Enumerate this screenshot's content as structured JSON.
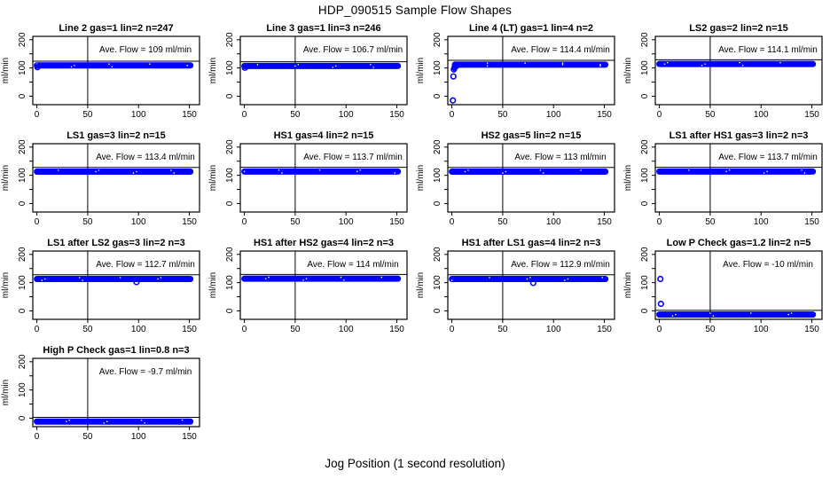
{
  "figure": {
    "title": "HDP_090515  Sample Flow Shapes",
    "xlabel": "Jog Position (1 second resolution)"
  },
  "chart_data": {
    "type": "scatter",
    "layout": {
      "rows": 4,
      "cols": 4,
      "panel_count": 13
    },
    "axes": {
      "xlim": [
        -4,
        160
      ],
      "ylim": [
        -30,
        212
      ],
      "x_ticks": [
        0,
        50,
        100,
        150
      ],
      "y_ticks_major": [
        0,
        100,
        200
      ],
      "y_ticks_minor": [
        50,
        150
      ],
      "y_axis_label": "ml/min",
      "vline_x": 50,
      "grid": false
    },
    "colors": {
      "points": "#0000ff",
      "axis": "#000000",
      "background": "#ffffff"
    },
    "panels": [
      {
        "title": "Line 2 gas=1 lin=2 n=247",
        "gas": "1",
        "lin": "2",
        "n": 247,
        "ave_flow": 109,
        "annotation": "Ave. Flow =  109  ml/min",
        "band": {
          "y": 109,
          "x_start": 0,
          "x_end": 151
        },
        "ref_line_y": 124,
        "outliers": [
          [
            0.5,
            103
          ]
        ]
      },
      {
        "title": "Line 3 gas=1 lin=3 n=246",
        "gas": "1",
        "lin": "3",
        "n": 246,
        "ave_flow": 106.7,
        "annotation": "Ave. Flow =  106.7  ml/min",
        "band": {
          "y": 107,
          "x_start": 0,
          "x_end": 151
        },
        "ref_line_y": 122,
        "outliers": [
          [
            0.5,
            101
          ]
        ]
      },
      {
        "title": "Line 4 (LT) gas=1 lin=4 n=2",
        "gas": "1",
        "lin": "4",
        "n": 2,
        "ave_flow": 114.4,
        "annotation": "Ave. Flow =  114.4  ml/min",
        "band": {
          "y": 112,
          "x_start": 3,
          "x_end": 151
        },
        "ref_line_y": 127,
        "outliers": [
          [
            1,
            -15
          ],
          [
            1.5,
            70
          ],
          [
            2,
            95
          ],
          [
            2.5,
            100
          ],
          [
            3,
            104
          ],
          [
            4,
            107
          ],
          [
            5,
            109
          ]
        ]
      },
      {
        "title": "LS2 gas=2 lin=2 n=15",
        "gas": "2",
        "lin": "2",
        "n": 15,
        "ave_flow": 114.1,
        "annotation": "Ave. Flow =  114.1  ml/min",
        "band": {
          "y": 114,
          "x_start": 0,
          "x_end": 151
        },
        "ref_line_y": 129,
        "outliers": []
      },
      {
        "title": "LS1 gas=3 lin=2 n=15",
        "gas": "3",
        "lin": "2",
        "n": 15,
        "ave_flow": 113.4,
        "annotation": "Ave. Flow =  113.4  ml/min",
        "band": {
          "y": 113,
          "x_start": 0,
          "x_end": 151
        },
        "ref_line_y": 128,
        "outliers": []
      },
      {
        "title": "HS1 gas=4 lin=2 n=15",
        "gas": "4",
        "lin": "2",
        "n": 15,
        "ave_flow": 113.7,
        "annotation": "Ave. Flow =  113.7  ml/min",
        "band": {
          "y": 113.5,
          "x_start": 0,
          "x_end": 151
        },
        "ref_line_y": 128.5,
        "outliers": []
      },
      {
        "title": "HS2 gas=5 lin=2 n=15",
        "gas": "5",
        "lin": "2",
        "n": 15,
        "ave_flow": 113,
        "annotation": "Ave. Flow =  113  ml/min",
        "band": {
          "y": 113,
          "x_start": 0,
          "x_end": 151
        },
        "ref_line_y": 128,
        "outliers": []
      },
      {
        "title": "LS1 after HS1 gas=3 lin=2 n=3",
        "gas": "3",
        "lin": "2",
        "n": 3,
        "ave_flow": 113.7,
        "annotation": "Ave. Flow =  113.7  ml/min",
        "band": {
          "y": 113.5,
          "x_start": 0,
          "x_end": 151
        },
        "ref_line_y": 128.5,
        "outliers": []
      },
      {
        "title": "LS1 after LS2 gas=3 lin=2 n=3",
        "gas": "3",
        "lin": "2",
        "n": 3,
        "ave_flow": 112.7,
        "annotation": "Ave. Flow =  112.7  ml/min",
        "band": {
          "y": 113,
          "x_start": 0,
          "x_end": 151
        },
        "ref_line_y": 128,
        "outliers": [
          [
            98,
            102
          ]
        ]
      },
      {
        "title": "HS1 after HS2 gas=4 lin=2 n=3",
        "gas": "4",
        "lin": "2",
        "n": 3,
        "ave_flow": 114,
        "annotation": "Ave. Flow =  114  ml/min",
        "band": {
          "y": 114,
          "x_start": 0,
          "x_end": 151
        },
        "ref_line_y": 129,
        "outliers": []
      },
      {
        "title": "HS1 after LS1 gas=4 lin=2 n=3",
        "gas": "4",
        "lin": "2",
        "n": 3,
        "ave_flow": 112.9,
        "annotation": "Ave. Flow =  112.9  ml/min",
        "band": {
          "y": 113,
          "x_start": 0,
          "x_end": 151
        },
        "ref_line_y": 128,
        "outliers": [
          [
            80,
            99
          ]
        ]
      },
      {
        "title": "Low P Check gas=1.2 lin=2 n=5",
        "gas": "1.2",
        "lin": "2",
        "n": 5,
        "ave_flow": -10,
        "annotation": "Ave. Flow =  -10  ml/min",
        "band": {
          "y": -13,
          "x_start": 0,
          "x_end": 151
        },
        "ref_line_y": 2,
        "outliers": [
          [
            1,
            113
          ],
          [
            1.5,
            25
          ]
        ]
      },
      {
        "title": "High P Check gas=1 lin=0.8 n=3",
        "gas": "1",
        "lin": "0.8",
        "n": 3,
        "ave_flow": -9.7,
        "annotation": "Ave. Flow =  -9.7  ml/min",
        "band": {
          "y": -12,
          "x_start": 0,
          "x_end": 151
        },
        "ref_line_y": 3,
        "outliers": []
      }
    ]
  }
}
